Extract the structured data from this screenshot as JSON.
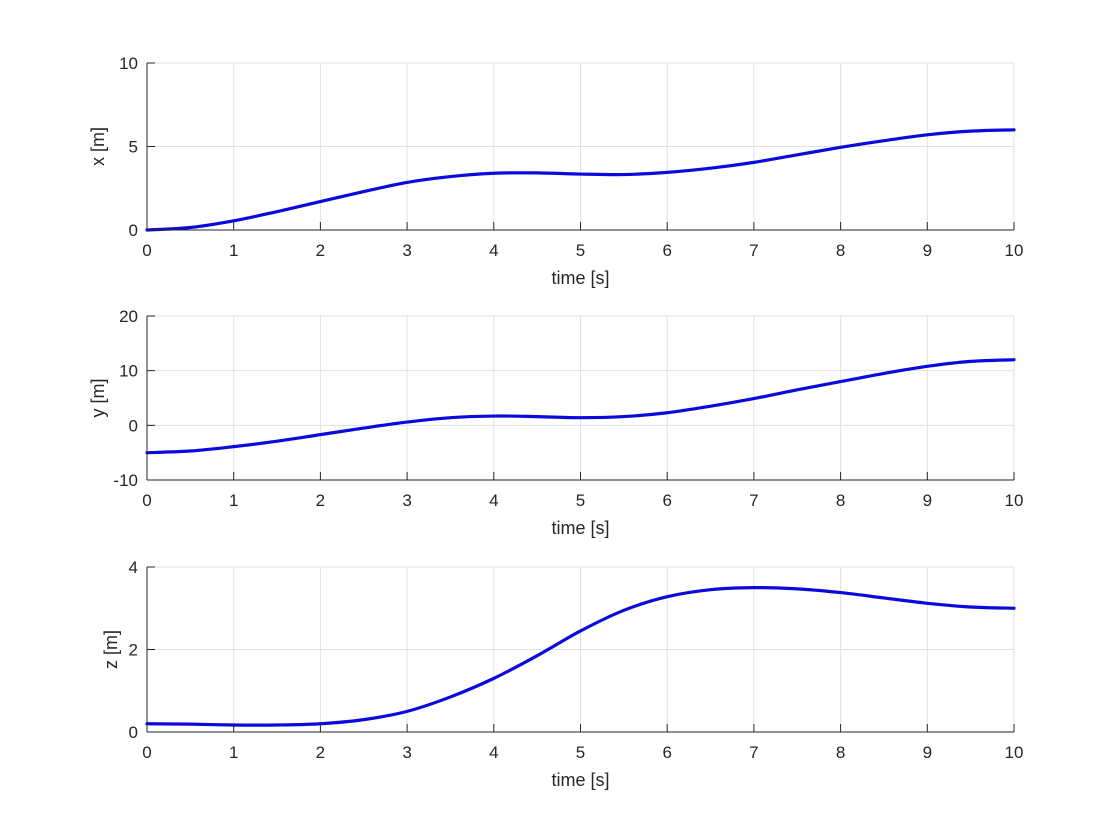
{
  "figure": {
    "background": "#ffffff",
    "line_color": "#0a0adc",
    "grid_color": "#e1e1e1",
    "axis_color": "#262626"
  },
  "chart_data": [
    {
      "type": "line",
      "title": "",
      "xlabel": "time [s]",
      "ylabel": "x [m]",
      "xlim": [
        0,
        10
      ],
      "ylim": [
        0,
        10
      ],
      "xticks": [
        0,
        1,
        2,
        3,
        4,
        5,
        6,
        7,
        8,
        9,
        10
      ],
      "yticks": [
        0,
        5,
        10
      ],
      "grid": true,
      "series": [
        {
          "x": [
            0,
            0.5,
            1,
            1.5,
            2,
            2.5,
            3,
            3.5,
            4,
            4.5,
            5,
            5.5,
            6,
            6.5,
            7,
            7.5,
            8,
            8.5,
            9,
            9.5,
            10
          ],
          "y": [
            0,
            0.15,
            0.55,
            1.1,
            1.7,
            2.3,
            2.85,
            3.2,
            3.4,
            3.42,
            3.35,
            3.32,
            3.45,
            3.7,
            4.05,
            4.5,
            4.95,
            5.35,
            5.7,
            5.92,
            6.0
          ]
        }
      ]
    },
    {
      "type": "line",
      "title": "",
      "xlabel": "time [s]",
      "ylabel": "y [m]",
      "xlim": [
        0,
        10
      ],
      "ylim": [
        -10,
        20
      ],
      "xticks": [
        0,
        1,
        2,
        3,
        4,
        5,
        6,
        7,
        8,
        9,
        10
      ],
      "yticks": [
        -10,
        0,
        10,
        20
      ],
      "grid": true,
      "series": [
        {
          "x": [
            0,
            0.5,
            1,
            1.5,
            2,
            2.5,
            3,
            3.5,
            4,
            4.5,
            5,
            5.5,
            6,
            6.5,
            7,
            7.5,
            8,
            8.5,
            9,
            9.5,
            10
          ],
          "y": [
            -5.0,
            -4.7,
            -3.9,
            -2.9,
            -1.7,
            -0.5,
            0.6,
            1.4,
            1.7,
            1.6,
            1.4,
            1.6,
            2.3,
            3.5,
            4.9,
            6.5,
            8.0,
            9.5,
            10.8,
            11.7,
            12.0
          ]
        }
      ]
    },
    {
      "type": "line",
      "title": "",
      "xlabel": "time [s]",
      "ylabel": "z [m]",
      "xlim": [
        0,
        10
      ],
      "ylim": [
        0,
        4
      ],
      "xticks": [
        0,
        1,
        2,
        3,
        4,
        5,
        6,
        7,
        8,
        9,
        10
      ],
      "yticks": [
        0,
        2,
        4
      ],
      "grid": true,
      "series": [
        {
          "x": [
            0,
            0.5,
            1,
            1.5,
            2,
            2.5,
            3,
            3.5,
            4,
            4.5,
            5,
            5.5,
            6,
            6.5,
            7,
            7.5,
            8,
            8.5,
            9,
            9.5,
            10
          ],
          "y": [
            0.2,
            0.19,
            0.17,
            0.17,
            0.2,
            0.3,
            0.5,
            0.85,
            1.3,
            1.85,
            2.45,
            2.95,
            3.28,
            3.45,
            3.5,
            3.47,
            3.38,
            3.25,
            3.12,
            3.03,
            3.0
          ]
        }
      ]
    }
  ]
}
